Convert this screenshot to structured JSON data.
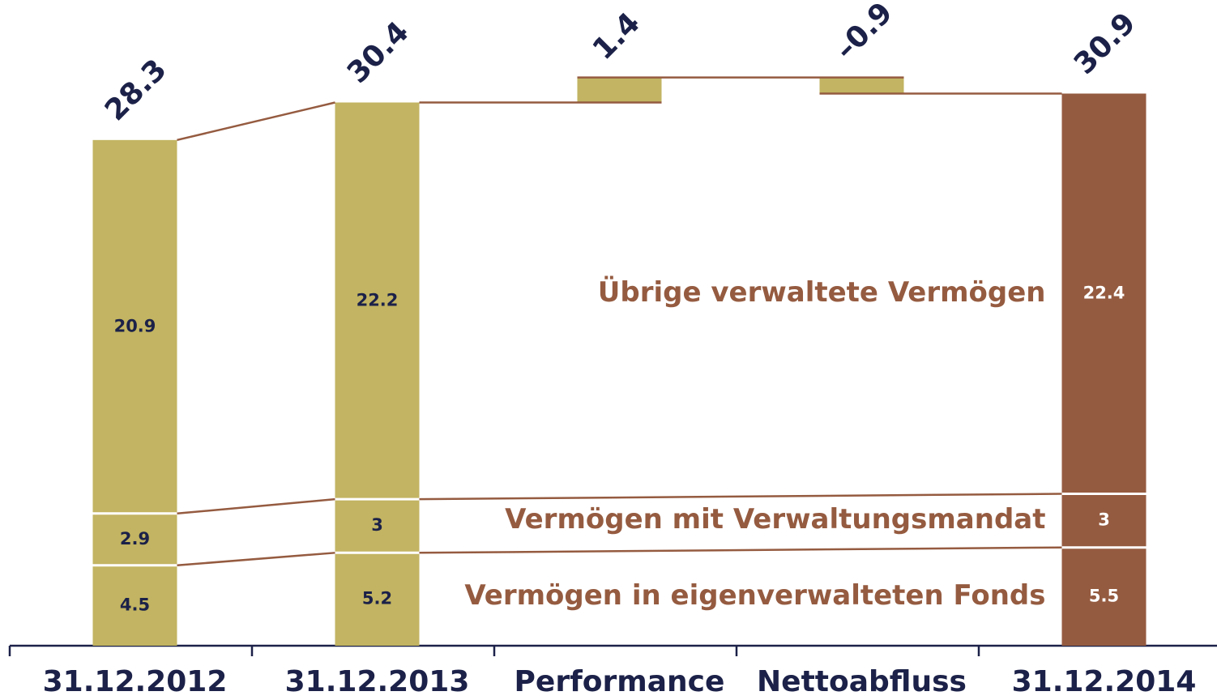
{
  "chart_data": {
    "type": "waterfall",
    "categories": [
      "31.12.2012",
      "31.12.2013",
      "Performance",
      "Nettoabfluss",
      "31.12.2014"
    ],
    "bar_colors": [
      "#c2b462",
      "#c2b462",
      "#c2b462",
      "#c2b462",
      "#955b40"
    ],
    "label_colors": [
      "#1b2148",
      "#1b2148",
      "#1b2148",
      "#1b2148",
      "#ffffff"
    ],
    "connector_color": "#955b40",
    "series": [
      {
        "name": "Vermögen in eigenverwalteten Fonds",
        "values": [
          4.5,
          5.2,
          null,
          null,
          5.5
        ]
      },
      {
        "name": "Vermögen mit Verwaltungsmandat",
        "values": [
          2.9,
          3.0,
          null,
          null,
          3.0
        ]
      },
      {
        "name": "Übrige verwaltete Vermögen",
        "values": [
          20.9,
          22.2,
          null,
          null,
          22.4
        ]
      }
    ],
    "totals": [
      28.3,
      30.4,
      null,
      null,
      30.9
    ],
    "changes": {
      "values": [
        null,
        null,
        1.4,
        -0.9,
        null
      ],
      "value_labels": [
        null,
        null,
        "1.4",
        "–0.9",
        null
      ]
    },
    "ylim": [
      0,
      36
    ]
  }
}
